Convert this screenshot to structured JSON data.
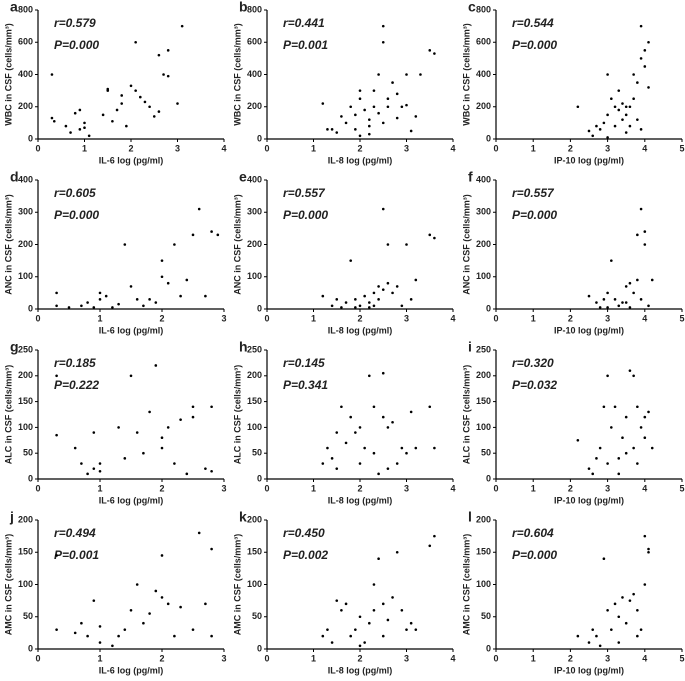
{
  "chart_data": [
    {
      "type": "scatter",
      "panel_label": "a",
      "r_label": "r=0.579",
      "p_label": "P=0.000",
      "x_label": "IL-6 log (pg/ml)",
      "y_label": "WBC in CSF (cells/mm³)",
      "color": "#000000",
      "xlim": [
        0,
        4
      ],
      "xticks": [
        0,
        1,
        2,
        3,
        4
      ],
      "ylim": [
        0,
        800
      ],
      "yticks": [
        0,
        200,
        400,
        600,
        800
      ],
      "x": [
        0.3,
        0.3,
        0.35,
        0.6,
        0.7,
        0.8,
        0.9,
        0.9,
        1.0,
        1.0,
        1.1,
        1.4,
        1.5,
        1.5,
        1.6,
        1.7,
        1.8,
        1.8,
        1.9,
        2.0,
        2.1,
        2.1,
        2.2,
        2.3,
        2.4,
        2.5,
        2.6,
        2.6,
        2.7,
        2.8,
        2.8,
        3.0,
        3.1
      ],
      "y": [
        400,
        130,
        110,
        80,
        40,
        160,
        180,
        60,
        100,
        70,
        20,
        150,
        300,
        310,
        110,
        180,
        220,
        270,
        80,
        330,
        600,
        300,
        260,
        230,
        200,
        140,
        170,
        520,
        400,
        390,
        550,
        220,
        700
      ]
    },
    {
      "type": "scatter",
      "panel_label": "b",
      "r_label": "r=0.441",
      "p_label": "P=0.001",
      "x_label": "IL-8 log (pg/ml)",
      "y_label": "WBC in CSF (cells/mm³)",
      "color": "#000000",
      "xlim": [
        0,
        4
      ],
      "xticks": [
        0,
        1,
        2,
        3,
        4
      ],
      "ylim": [
        0,
        800
      ],
      "yticks": [
        0,
        200,
        400,
        600,
        800
      ],
      "x": [
        1.2,
        1.3,
        1.4,
        1.5,
        1.6,
        1.7,
        1.8,
        1.9,
        1.9,
        2.0,
        2.0,
        2.1,
        2.2,
        2.2,
        2.3,
        2.3,
        2.4,
        2.4,
        2.5,
        2.5,
        2.5,
        2.6,
        2.6,
        2.7,
        2.8,
        2.8,
        2.9,
        3.0,
        3.0,
        3.1,
        3.2,
        3.3,
        3.5,
        3.6,
        2.2,
        2.0
      ],
      "y": [
        220,
        60,
        60,
        40,
        140,
        100,
        200,
        150,
        60,
        250,
        300,
        180,
        120,
        80,
        200,
        300,
        160,
        400,
        100,
        600,
        700,
        250,
        200,
        350,
        280,
        130,
        200,
        210,
        400,
        50,
        140,
        400,
        550,
        530,
        30,
        20
      ]
    },
    {
      "type": "scatter",
      "panel_label": "c",
      "r_label": "r=0.544",
      "p_label": "P=0.000",
      "x_label": "IP-10 log (pg/ml)",
      "y_label": "WBC in CSF (cells/mm³)",
      "color": "#000000",
      "xlim": [
        0,
        5
      ],
      "xticks": [
        0,
        1,
        2,
        3,
        4,
        5
      ],
      "ylim": [
        0,
        800
      ],
      "yticks": [
        0,
        200,
        400,
        600,
        800
      ],
      "x": [
        2.2,
        2.5,
        2.6,
        2.7,
        2.8,
        2.9,
        3.0,
        3.0,
        3.1,
        3.2,
        3.2,
        3.3,
        3.3,
        3.4,
        3.4,
        3.5,
        3.5,
        3.6,
        3.6,
        3.7,
        3.7,
        3.8,
        3.8,
        3.9,
        3.9,
        4.0,
        4.0,
        4.1,
        4.1,
        3.9,
        3.5,
        3.0
      ],
      "y": [
        200,
        50,
        20,
        80,
        60,
        100,
        400,
        150,
        250,
        200,
        80,
        180,
        300,
        220,
        120,
        200,
        150,
        200,
        80,
        250,
        400,
        120,
        350,
        500,
        700,
        450,
        550,
        600,
        320,
        60,
        40,
        10
      ]
    },
    {
      "type": "scatter",
      "panel_label": "d",
      "r_label": "r=0.605",
      "p_label": "P=0.000",
      "x_label": "IL-6 log (pg/ml)",
      "y_label": "ANC in CSF (cells/mm³)",
      "color": "#000000",
      "xlim": [
        0,
        3
      ],
      "xticks": [
        0,
        1,
        2,
        3
      ],
      "ylim": [
        0,
        400
      ],
      "yticks": [
        0,
        100,
        200,
        300,
        400
      ],
      "x": [
        0.3,
        0.3,
        0.7,
        0.8,
        0.9,
        1.0,
        1.0,
        1.1,
        1.2,
        1.4,
        1.5,
        1.6,
        1.7,
        1.8,
        1.9,
        2.0,
        2.0,
        2.1,
        2.2,
        2.3,
        2.4,
        2.5,
        2.6,
        2.7,
        2.8,
        2.9,
        1.3,
        0.5
      ],
      "y": [
        50,
        10,
        10,
        20,
        5,
        30,
        50,
        40,
        5,
        200,
        70,
        30,
        10,
        30,
        20,
        100,
        150,
        80,
        200,
        40,
        90,
        230,
        310,
        40,
        240,
        230,
        15,
        5
      ]
    },
    {
      "type": "scatter",
      "panel_label": "e",
      "r_label": "r=0.557",
      "p_label": "P=0.000",
      "x_label": "IL-8 log (pg/ml)",
      "y_label": "ANC in CSF (cells/mm³)",
      "color": "#000000",
      "xlim": [
        0,
        4
      ],
      "xticks": [
        0,
        1,
        2,
        3,
        4
      ],
      "ylim": [
        0,
        400
      ],
      "yticks": [
        0,
        100,
        200,
        300,
        400
      ],
      "x": [
        1.2,
        1.4,
        1.5,
        1.6,
        1.7,
        1.8,
        1.9,
        2.0,
        2.1,
        2.2,
        2.3,
        2.3,
        2.4,
        2.4,
        2.5,
        2.5,
        2.6,
        2.6,
        2.7,
        2.8,
        2.9,
        3.0,
        3.1,
        3.2,
        3.5,
        3.6,
        2.2,
        1.9
      ],
      "y": [
        40,
        10,
        30,
        5,
        20,
        150,
        30,
        10,
        40,
        20,
        10,
        50,
        70,
        30,
        310,
        60,
        200,
        80,
        50,
        70,
        10,
        200,
        30,
        90,
        230,
        220,
        5,
        5
      ]
    },
    {
      "type": "scatter",
      "panel_label": "f",
      "r_label": "r=0.557",
      "p_label": "P=0.000",
      "x_label": "IP-10 log (pg/ml)",
      "y_label": "ANC in CSF (cells/mm³)",
      "color": "#000000",
      "xlim": [
        0,
        5
      ],
      "xticks": [
        0,
        1,
        2,
        3,
        4,
        5
      ],
      "ylim": [
        0,
        400
      ],
      "yticks": [
        0,
        100,
        200,
        300,
        400
      ],
      "x": [
        2.5,
        2.7,
        2.8,
        2.9,
        3.0,
        3.1,
        3.2,
        3.3,
        3.4,
        3.5,
        3.5,
        3.6,
        3.7,
        3.8,
        3.8,
        3.9,
        3.9,
        4.0,
        4.0,
        4.1,
        4.2,
        3.0,
        3.6
      ],
      "y": [
        40,
        20,
        5,
        30,
        50,
        150,
        30,
        10,
        20,
        70,
        20,
        80,
        50,
        90,
        230,
        310,
        30,
        240,
        200,
        10,
        90,
        5,
        5
      ]
    },
    {
      "type": "scatter",
      "panel_label": "g",
      "r_label": "r=0.185",
      "p_label": "P=0.222",
      "x_label": "IL-6 log (pg/ml)",
      "y_label": "ALC in CSF (cells/mm³)",
      "color": "#000000",
      "xlim": [
        0,
        3
      ],
      "xticks": [
        0,
        1,
        2,
        3
      ],
      "ylim": [
        0,
        250
      ],
      "yticks": [
        0,
        50,
        100,
        150,
        200,
        250
      ],
      "x": [
        0.3,
        0.3,
        0.6,
        0.7,
        0.8,
        0.9,
        0.9,
        1.0,
        1.0,
        1.3,
        1.4,
        1.5,
        1.6,
        1.7,
        1.8,
        1.9,
        2.0,
        2.0,
        2.1,
        2.2,
        2.3,
        2.4,
        2.5,
        2.5,
        2.7,
        2.8,
        2.8
      ],
      "y": [
        200,
        85,
        60,
        30,
        10,
        90,
        20,
        30,
        15,
        100,
        40,
        200,
        90,
        50,
        130,
        220,
        80,
        60,
        100,
        30,
        115,
        10,
        120,
        140,
        20,
        140,
        15
      ]
    },
    {
      "type": "scatter",
      "panel_label": "h",
      "r_label": "r=0.145",
      "p_label": "P=0.341",
      "x_label": "IL-8 log (pg/ml)",
      "y_label": "ALC in CSF (cells/mm³)",
      "color": "#000000",
      "xlim": [
        0,
        4
      ],
      "xticks": [
        0,
        1,
        2,
        3,
        4
      ],
      "ylim": [
        0,
        250
      ],
      "yticks": [
        0,
        50,
        100,
        150,
        200,
        250
      ],
      "x": [
        1.2,
        1.3,
        1.4,
        1.5,
        1.5,
        1.6,
        1.7,
        1.8,
        1.9,
        2.0,
        2.0,
        2.1,
        2.2,
        2.3,
        2.3,
        2.4,
        2.5,
        2.5,
        2.6,
        2.7,
        2.8,
        2.9,
        3.0,
        3.1,
        3.2,
        3.5,
        3.6,
        2.6
      ],
      "y": [
        30,
        60,
        40,
        90,
        20,
        140,
        70,
        120,
        90,
        30,
        100,
        60,
        200,
        140,
        50,
        10,
        205,
        120,
        100,
        110,
        30,
        60,
        50,
        130,
        60,
        140,
        60,
        20
      ]
    },
    {
      "type": "scatter",
      "panel_label": "i",
      "r_label": "r=0.320",
      "p_label": "P=0.032",
      "x_label": "IP-10 log (pg/ml)",
      "y_label": "ALC in CSF (cells/mm³)",
      "color": "#000000",
      "xlim": [
        0,
        5
      ],
      "xticks": [
        0,
        1,
        2,
        3,
        4,
        5
      ],
      "ylim": [
        0,
        250
      ],
      "yticks": [
        0,
        50,
        100,
        150,
        200,
        250
      ],
      "x": [
        2.5,
        2.6,
        2.7,
        2.8,
        2.9,
        3.0,
        3.0,
        3.1,
        3.2,
        3.3,
        3.4,
        3.5,
        3.5,
        3.6,
        3.7,
        3.7,
        3.8,
        3.8,
        3.9,
        4.0,
        4.0,
        4.1,
        4.2,
        2.2,
        3.3
      ],
      "y": [
        20,
        10,
        40,
        60,
        140,
        30,
        200,
        100,
        140,
        40,
        80,
        50,
        120,
        210,
        200,
        60,
        140,
        30,
        100,
        120,
        80,
        130,
        60,
        75,
        10
      ]
    },
    {
      "type": "scatter",
      "panel_label": "j",
      "r_label": "r=0.494",
      "p_label": "P=0.001",
      "x_label": "IL-6 log (pg/ml)",
      "y_label": "AMC in CSF (cells/mm³)",
      "color": "#000000",
      "xlim": [
        0,
        3
      ],
      "xticks": [
        0,
        1,
        2,
        3
      ],
      "ylim": [
        0,
        200
      ],
      "yticks": [
        0,
        50,
        100,
        150,
        200
      ],
      "x": [
        0.3,
        0.3,
        0.6,
        0.7,
        0.8,
        0.9,
        1.0,
        1.0,
        1.3,
        1.4,
        1.5,
        1.6,
        1.7,
        1.8,
        1.9,
        2.0,
        2.0,
        2.1,
        2.2,
        2.3,
        2.5,
        2.6,
        2.7,
        2.8,
        2.8,
        1.2
      ],
      "y": [
        145,
        30,
        25,
        40,
        20,
        75,
        35,
        10,
        20,
        30,
        60,
        100,
        40,
        55,
        90,
        145,
        80,
        70,
        20,
        65,
        30,
        180,
        70,
        155,
        20,
        5
      ]
    },
    {
      "type": "scatter",
      "panel_label": "k",
      "r_label": "r=0.450",
      "p_label": "P=0.002",
      "x_label": "IL-8 log (pg/ml)",
      "y_label": "AMC in CSF (cells/mm³)",
      "color": "#000000",
      "xlim": [
        0,
        4
      ],
      "xticks": [
        0,
        1,
        2,
        3,
        4
      ],
      "ylim": [
        0,
        200
      ],
      "yticks": [
        0,
        50,
        100,
        150,
        200
      ],
      "x": [
        1.2,
        1.3,
        1.4,
        1.5,
        1.6,
        1.7,
        1.8,
        1.9,
        2.0,
        2.1,
        2.2,
        2.3,
        2.3,
        2.4,
        2.5,
        2.5,
        2.6,
        2.7,
        2.8,
        2.9,
        3.0,
        3.1,
        3.2,
        3.5,
        3.6,
        2.0
      ],
      "y": [
        20,
        30,
        10,
        75,
        60,
        70,
        20,
        30,
        50,
        10,
        40,
        60,
        100,
        140,
        20,
        70,
        45,
        80,
        150,
        60,
        30,
        40,
        30,
        160,
        175,
        5
      ]
    },
    {
      "type": "scatter",
      "panel_label": "l",
      "r_label": "r=0.604",
      "p_label": "P=0.000",
      "x_label": "IP-10 log (pg/ml)",
      "y_label": "AMC in CSF (cells/mm³)",
      "color": "#000000",
      "xlim": [
        0,
        5
      ],
      "xticks": [
        0,
        1,
        2,
        3,
        4,
        5
      ],
      "ylim": [
        0,
        200
      ],
      "yticks": [
        0,
        50,
        100,
        150,
        200
      ],
      "x": [
        2.2,
        2.5,
        2.6,
        2.7,
        2.8,
        2.9,
        3.0,
        3.1,
        3.2,
        3.3,
        3.4,
        3.5,
        3.6,
        3.7,
        3.8,
        3.9,
        4.0,
        4.0,
        4.1,
        4.1,
        3.8,
        3.3
      ],
      "y": [
        20,
        10,
        30,
        20,
        5,
        140,
        60,
        30,
        70,
        50,
        80,
        40,
        75,
        85,
        60,
        30,
        100,
        175,
        150,
        155,
        20,
        10
      ]
    }
  ]
}
